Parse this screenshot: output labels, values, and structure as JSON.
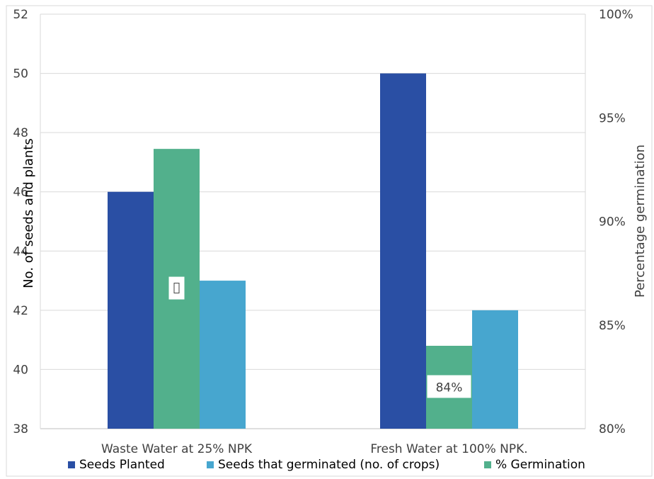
{
  "chart_data": {
    "type": "bar",
    "categories": [
      "Waste Water at 25% NPK",
      "Fresh Water at 100% NPK."
    ],
    "series": [
      {
        "name": "Seeds Planted",
        "axis": "left",
        "values": [
          46,
          50
        ],
        "color": "#2a4fa4"
      },
      {
        "name": "% Germination",
        "axis": "right",
        "values": [
          93.5,
          84
        ],
        "color": "#52b08c",
        "data_labels": [
          "",
          "84%"
        ]
      },
      {
        "name": "Seeds that germinated (no. of crops)",
        "axis": "left",
        "values": [
          43,
          42
        ],
        "color": "#47a6cf"
      }
    ],
    "legend_order": [
      "Seeds Planted",
      "Seeds that germinated (no. of crops)",
      "% Germination"
    ],
    "ylabel": "No. of seeds and plants",
    "y2label": "Percentage germination",
    "ylim": [
      38,
      52
    ],
    "y_ticks": [
      "38",
      "40",
      "42",
      "44",
      "46",
      "48",
      "50",
      "52"
    ],
    "y2lim": [
      80,
      100
    ],
    "y2_ticks": [
      "80%",
      "85%",
      "90%",
      "95%",
      "100%"
    ],
    "grid": true,
    "legend_position": "bottom"
  }
}
